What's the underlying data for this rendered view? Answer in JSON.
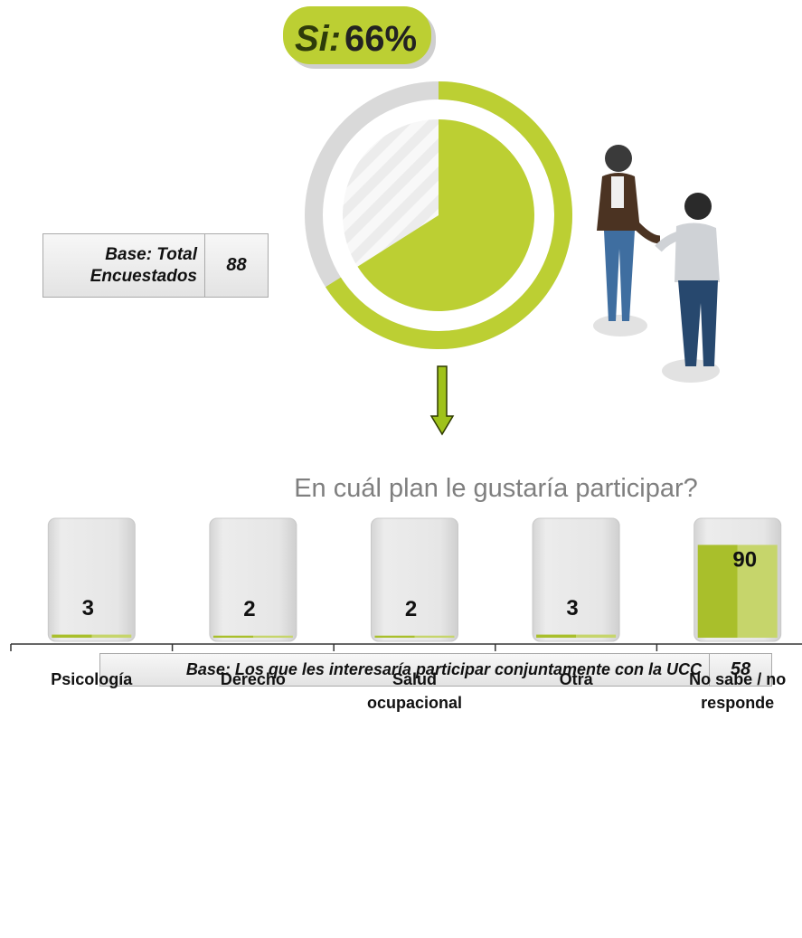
{
  "chart_data": [
    {
      "type": "donut",
      "label": "Si:",
      "values": [
        66
      ],
      "value_labels": [
        "66%"
      ],
      "color": "#bccf33",
      "rest_color": "#d9d9d9"
    },
    {
      "type": "bar",
      "title": "En cuál plan le gustaría participar?",
      "categories": [
        "Psicología",
        "Derecho",
        "Salud ocupacional",
        "Otra",
        "No sabe / no responde"
      ],
      "values": [
        3,
        2,
        2,
        3,
        90
      ],
      "ylim": [
        0,
        100
      ],
      "color": "#a9bf2b",
      "light_color": "#c6d56b"
    }
  ],
  "bases": [
    {
      "label": "Base: Total Encuestados",
      "value": 88
    },
    {
      "label": "Base: Los que les interesaría participar conjuntamente con la UCC",
      "value": 58
    }
  ]
}
